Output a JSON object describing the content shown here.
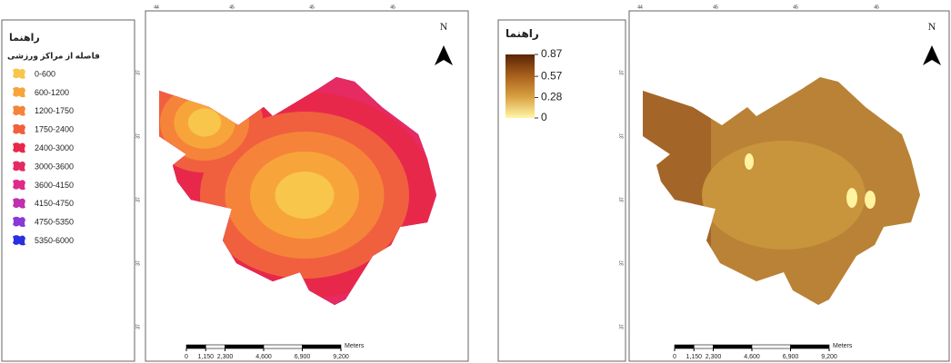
{
  "left_panel": {
    "legend": {
      "title": "راهنما",
      "subtitle": "فاصله از مراکز ورزشی",
      "classes": [
        {
          "label": "0-600",
          "color": "#f7c64a"
        },
        {
          "label": "600-1200",
          "color": "#f7a53a"
        },
        {
          "label": "1200-1750",
          "color": "#f5843a"
        },
        {
          "label": "1750-2400",
          "color": "#f0603f"
        },
        {
          "label": "2400-3000",
          "color": "#e8284a"
        },
        {
          "label": "3000-3600",
          "color": "#e62a62"
        },
        {
          "label": "3600-4150",
          "color": "#e02a8a"
        },
        {
          "label": "4150-4750",
          "color": "#c030b0"
        },
        {
          "label": "4750-5350",
          "color": "#8a38d8"
        },
        {
          "label": "5350-6000",
          "color": "#2a30e0"
        }
      ]
    },
    "north": "N",
    "top_ticks": [
      "44",
      "45",
      "45",
      "45"
    ],
    "side_ticks": [
      "37",
      "37",
      "37",
      "37",
      "37"
    ],
    "scale_bar": {
      "unit": "Meters",
      "xlim": [
        0,
        9200
      ],
      "ticks": [
        0,
        {
          "value": 1150,
          "label": "1,150"
        },
        {
          "value": 2300,
          "label": "2,300"
        },
        {
          "value": 4600,
          "label": "4,600"
        },
        {
          "value": 6900,
          "label": "6,900"
        },
        {
          "value": 9200,
          "label": "9,200"
        }
      ]
    }
  },
  "right_panel": {
    "legend": {
      "title": "راهنما",
      "range": [
        0,
        0.87
      ],
      "ticks": [
        0.87,
        0.57,
        0.28,
        0
      ],
      "colors": [
        "#fff7a8",
        "#d9a040",
        "#a8601c",
        "#5a2406"
      ]
    },
    "north": "N",
    "top_ticks": [
      "44",
      "45",
      "45",
      "45"
    ],
    "side_ticks": [
      "37",
      "37",
      "37",
      "37",
      "37"
    ],
    "scale_bar": {
      "unit": "Meters",
      "xlim": [
        0,
        9200
      ],
      "ticks": [
        0,
        {
          "value": 1150,
          "label": "1,150"
        },
        {
          "value": 2300,
          "label": "2,300"
        },
        {
          "value": 4600,
          "label": "4,600"
        },
        {
          "value": 6900,
          "label": "6,900"
        },
        {
          "value": 9200,
          "label": "9,200"
        }
      ]
    }
  }
}
